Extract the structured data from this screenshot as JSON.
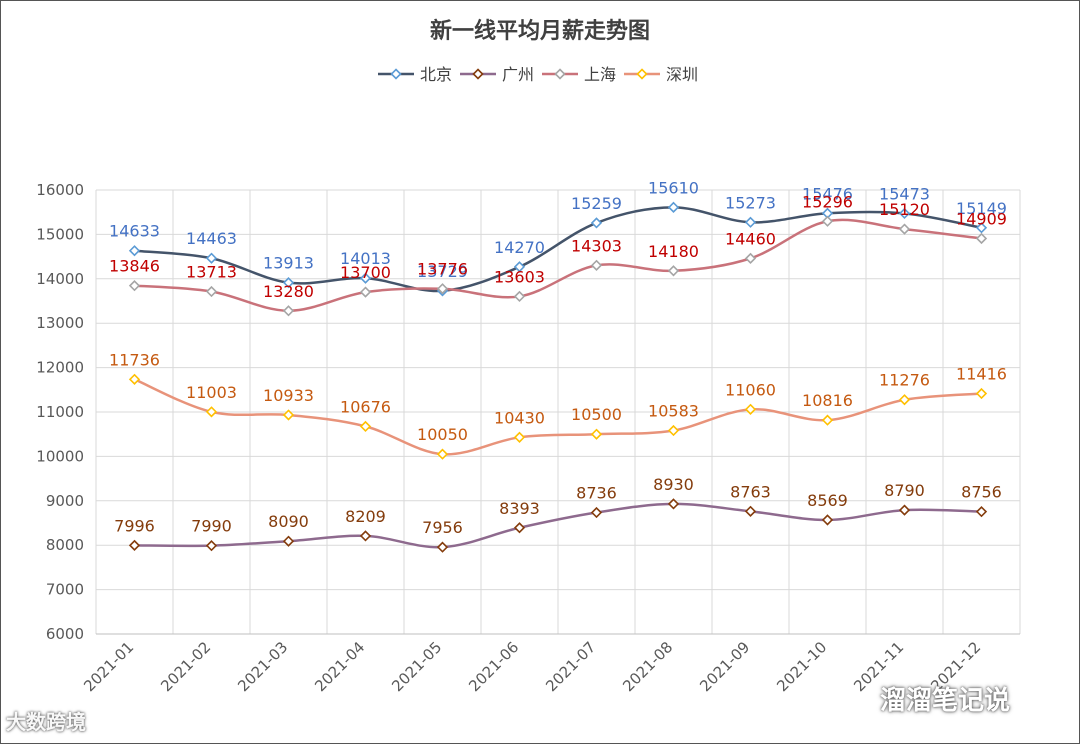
{
  "chart_data": {
    "type": "line",
    "title": "新一线平均月薪走势图",
    "categories": [
      "2021-01",
      "2021-02",
      "2021-03",
      "2021-04",
      "2021-05",
      "2021-06",
      "2021-07",
      "2021-08",
      "2021-09",
      "2021-10",
      "2021-11",
      "2021-12"
    ],
    "ylim": [
      6000,
      16000
    ],
    "yticks": [
      "6000",
      "7000",
      "8000",
      "9000",
      "10000",
      "11000",
      "12000",
      "13000",
      "14000",
      "15000",
      "16000"
    ],
    "grid": true,
    "legend_position": "top-center",
    "series": [
      {
        "name": "北京",
        "color": "#44546a",
        "marker_color": "#5b9bd5",
        "label_color": "#4472c4",
        "values": [
          14633,
          14463,
          13913,
          14013,
          13729,
          14270,
          15259,
          15610,
          15273,
          15476,
          15473,
          15149
        ]
      },
      {
        "name": "广州",
        "color": "#8e6a8e",
        "marker_color": "#843c0c",
        "label_color": "#843c0c",
        "values": [
          7996,
          7990,
          8090,
          8209,
          7956,
          8393,
          8736,
          8930,
          8763,
          8569,
          8790,
          8756
        ]
      },
      {
        "name": "上海",
        "color": "#c9727a",
        "marker_color": "#a5a5a5",
        "label_color": "#c00000",
        "values": [
          13846,
          13713,
          13280,
          13700,
          13776,
          13603,
          14303,
          14180,
          14460,
          15296,
          15120,
          14909
        ]
      },
      {
        "name": "深圳",
        "color": "#e8937a",
        "marker_color": "#ffc000",
        "label_color": "#c55a11",
        "values": [
          11736,
          11003,
          10933,
          10676,
          10050,
          10430,
          10500,
          10583,
          11060,
          10816,
          11276,
          11416
        ]
      }
    ]
  },
  "watermarks": {
    "left": "大数跨境",
    "right": "溜溜笔记说"
  }
}
